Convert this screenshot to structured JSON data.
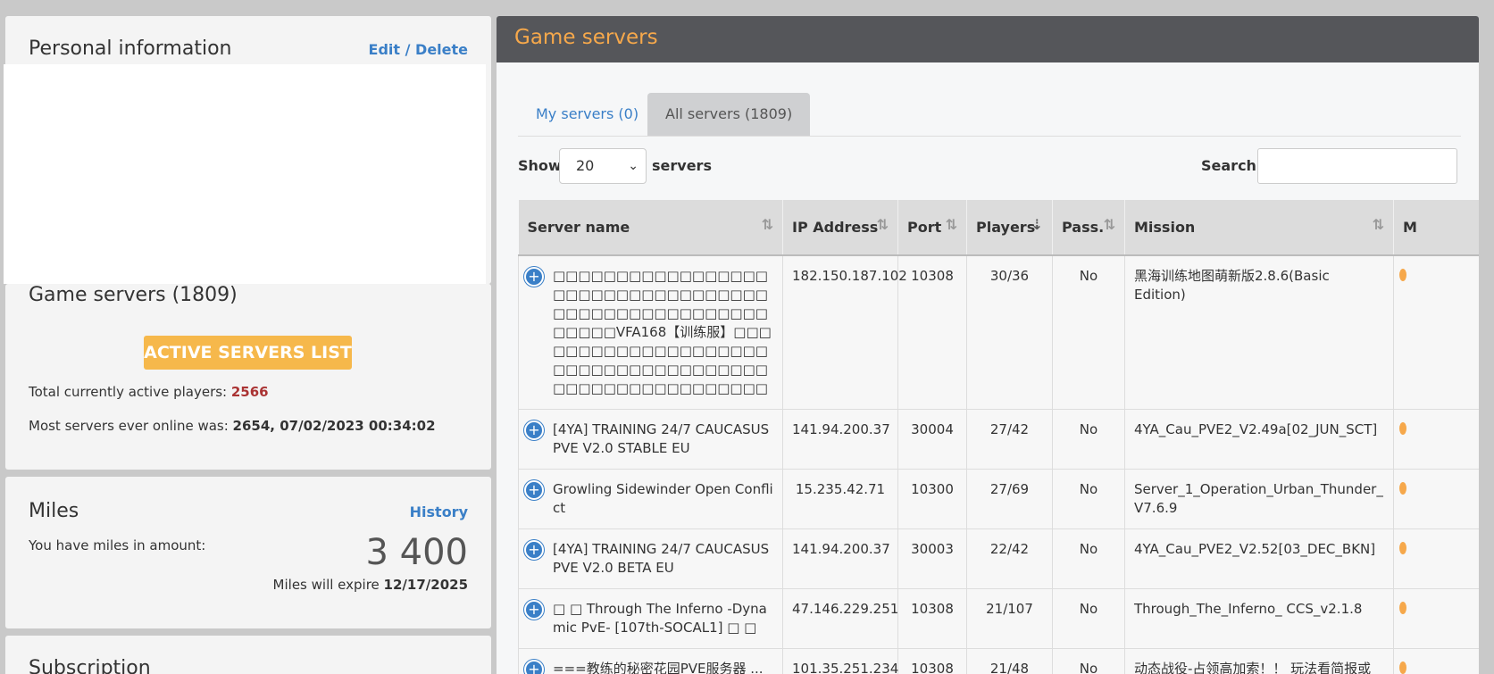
{
  "personal": {
    "title": "Personal information",
    "edit_link": "Edit / Delete"
  },
  "game_summary": {
    "title": "Game servers (1809)",
    "button": "ACTIVE SERVERS LIST",
    "players_label": "Total currently active players: ",
    "players_value": "2566",
    "most_label": "Most servers ever online was: ",
    "most_value": "2654, 07/02/2023 00:34:02"
  },
  "miles": {
    "title": "Miles",
    "history_link": "History",
    "label": "You have miles in amount:",
    "amount": "3 400",
    "expire_label": "Miles will expire ",
    "expire_date": "12/17/2025"
  },
  "subscription": {
    "title": "Subscription"
  },
  "panel": {
    "title": "Game servers",
    "tabs": [
      {
        "label": "My servers (0)"
      },
      {
        "label": "All servers (1809)"
      }
    ],
    "show_label": "Show",
    "page_length": "20",
    "servers_label": "servers",
    "search_label": "Search:",
    "search_value": ""
  },
  "table": {
    "headers": {
      "name": "Server name",
      "ip": "IP Address",
      "port": "Port",
      "players": "Players",
      "pass": "Pass.",
      "mission": "Mission",
      "more": "M"
    },
    "rows": [
      {
        "name": "□□□□□□□□□□□□□□□□□□□□□□□□□□□□□□□□□□□□□□□□□□□□□□□□□□□□□□□□VFA168【训练服】□□□□□□□□□□□□□□□□□□□□□□□□□□□□□□□□□□□□□□□□□□□□□□□□□□□□□□",
        "ip": "182.150.187.102",
        "port": "10308",
        "players": "30/36",
        "pass": "No",
        "mission": "黑海训练地图萌新版2.8.6(Basic Edition)"
      },
      {
        "name": "[4YA] TRAINING 24/7 CAUCASUS PVE V2.0 STABLE EU",
        "ip": "141.94.200.37",
        "port": "30004",
        "players": "27/42",
        "pass": "No",
        "mission": "4YA_Cau_PVE2_V2.49a[02_JUN_SCT]"
      },
      {
        "name": "Growling Sidewinder Open Conflict",
        "ip": "15.235.42.71",
        "port": "10300",
        "players": "27/69",
        "pass": "No",
        "mission": "Server_1_Operation_Urban_Thunder_V7.6.9"
      },
      {
        "name": "[4YA] TRAINING 24/7 CAUCASUS PVE V2.0 BETA EU",
        "ip": "141.94.200.37",
        "port": "30003",
        "players": "22/42",
        "pass": "No",
        "mission": "4YA_Cau_PVE2_V2.52[03_DEC_BKN]"
      },
      {
        "name": "□ □ Through The Inferno -Dynamic PvE- [107th-SOCAL1] □ □",
        "ip": "47.146.229.251",
        "port": "10308",
        "players": "21/107",
        "pass": "No",
        "mission": "Through_The_Inferno_ CCS_v2.1.8"
      },
      {
        "name": "===教练的秘密花园PVE服务器 ...",
        "ip": "101.35.251.234",
        "port": "10308",
        "players": "21/48",
        "pass": "No",
        "mission": "动态战役-占领高加索！！ 玩法看简报或"
      }
    ]
  }
}
